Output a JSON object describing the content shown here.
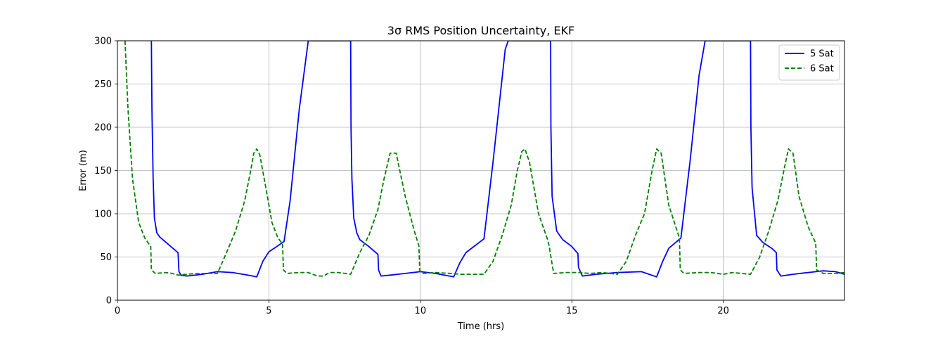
{
  "chart_data": {
    "type": "line",
    "title": "3σ RMS Position Uncertainty, EKF",
    "xlabel": "Time (hrs)",
    "ylabel": "Error (m)",
    "xlim": [
      0,
      24
    ],
    "ylim": [
      0,
      300
    ],
    "xticks": [
      0,
      5,
      10,
      15,
      20
    ],
    "yticks": [
      0,
      50,
      100,
      150,
      200,
      250,
      300
    ],
    "grid": true,
    "legend_position": "top-right",
    "series": [
      {
        "name": "5 Sat",
        "color": "#0000ff",
        "style": "solid",
        "x": [
          1.12,
          1.14,
          1.18,
          1.22,
          1.3,
          1.4,
          1.6,
          1.9,
          2.0,
          2.03,
          2.1,
          2.3,
          2.8,
          3.3,
          3.8,
          4.3,
          4.6,
          4.8,
          5.0,
          5.3,
          5.5,
          5.7,
          6.0,
          6.3,
          6.31,
          7.7,
          7.71,
          7.74,
          7.8,
          7.9,
          8.0,
          8.3,
          8.6,
          8.62,
          8.7,
          9.0,
          9.5,
          10.0,
          10.5,
          11.1,
          11.3,
          11.5,
          11.8,
          12.1,
          12.4,
          12.8,
          12.9,
          14.3,
          14.31,
          14.35,
          14.5,
          14.7,
          15.0,
          15.2,
          15.22,
          15.35,
          15.8,
          16.5,
          17.3,
          17.8,
          18.0,
          18.2,
          18.6,
          18.9,
          19.2,
          19.4,
          19.41,
          20.9,
          20.91,
          20.95,
          21.1,
          21.3,
          21.6,
          21.75,
          21.77,
          21.9,
          22.3,
          22.8,
          23.3,
          23.7,
          24.0
        ],
        "y": [
          300,
          220,
          140,
          95,
          78,
          73,
          67,
          58,
          55,
          33,
          29,
          28,
          30,
          33,
          32,
          29,
          27,
          45,
          56,
          63,
          68,
          115,
          220,
          300,
          300,
          300,
          200,
          140,
          95,
          78,
          70,
          62,
          53,
          35,
          28,
          29,
          31,
          33,
          31,
          27,
          43,
          55,
          63,
          71,
          160,
          290,
          300,
          300,
          200,
          120,
          80,
          70,
          62,
          54,
          38,
          28,
          30,
          32,
          33,
          27,
          45,
          60,
          72,
          160,
          260,
          300,
          300,
          300,
          200,
          130,
          75,
          67,
          60,
          55,
          35,
          28,
          30,
          32,
          34,
          33,
          30
        ]
      },
      {
        "name": "6 Sat",
        "color": "#008000",
        "style": "dashed",
        "x": [
          0.25,
          0.35,
          0.5,
          0.7,
          0.9,
          1.1,
          1.12,
          1.25,
          1.6,
          1.8,
          2.0,
          2.3,
          2.6,
          3.0,
          3.3,
          3.6,
          3.9,
          4.2,
          4.4,
          4.5,
          4.6,
          4.7,
          4.9,
          5.1,
          5.3,
          5.45,
          5.48,
          5.6,
          6.0,
          6.3,
          6.6,
          6.8,
          7.0,
          7.3,
          7.7,
          8.0,
          8.3,
          8.6,
          8.8,
          9.0,
          9.2,
          9.5,
          9.8,
          9.95,
          9.98,
          10.1,
          10.5,
          11.0,
          11.3,
          11.6,
          12.1,
          12.4,
          12.7,
          13.0,
          13.2,
          13.35,
          13.45,
          13.6,
          13.9,
          14.2,
          14.25,
          14.4,
          14.8,
          15.2,
          15.6,
          16.0,
          16.5,
          16.8,
          17.1,
          17.4,
          17.65,
          17.8,
          17.95,
          18.2,
          18.55,
          18.58,
          18.7,
          19.2,
          19.6,
          20.0,
          20.3,
          20.6,
          20.9,
          21.2,
          21.5,
          21.8,
          22.0,
          22.15,
          22.3,
          22.5,
          22.8,
          23.05,
          23.08,
          23.3,
          23.7,
          24.0
        ],
        "y": [
          300,
          220,
          140,
          90,
          72,
          62,
          35,
          31,
          32,
          31,
          29,
          30,
          31,
          31,
          31,
          55,
          80,
          115,
          150,
          170,
          175,
          168,
          130,
          90,
          72,
          65,
          35,
          31,
          32,
          32,
          28,
          28,
          32,
          32,
          30,
          55,
          75,
          105,
          140,
          170,
          170,
          120,
          80,
          63,
          34,
          31,
          32,
          31,
          30,
          30,
          30,
          45,
          75,
          110,
          150,
          172,
          175,
          160,
          100,
          70,
          63,
          31,
          32,
          32,
          31,
          32,
          30,
          45,
          75,
          100,
          150,
          175,
          170,
          110,
          72,
          35,
          31,
          32,
          32,
          30,
          32,
          31,
          30,
          50,
          80,
          115,
          150,
          175,
          170,
          120,
          85,
          66,
          35,
          31,
          31,
          32
        ]
      }
    ]
  }
}
